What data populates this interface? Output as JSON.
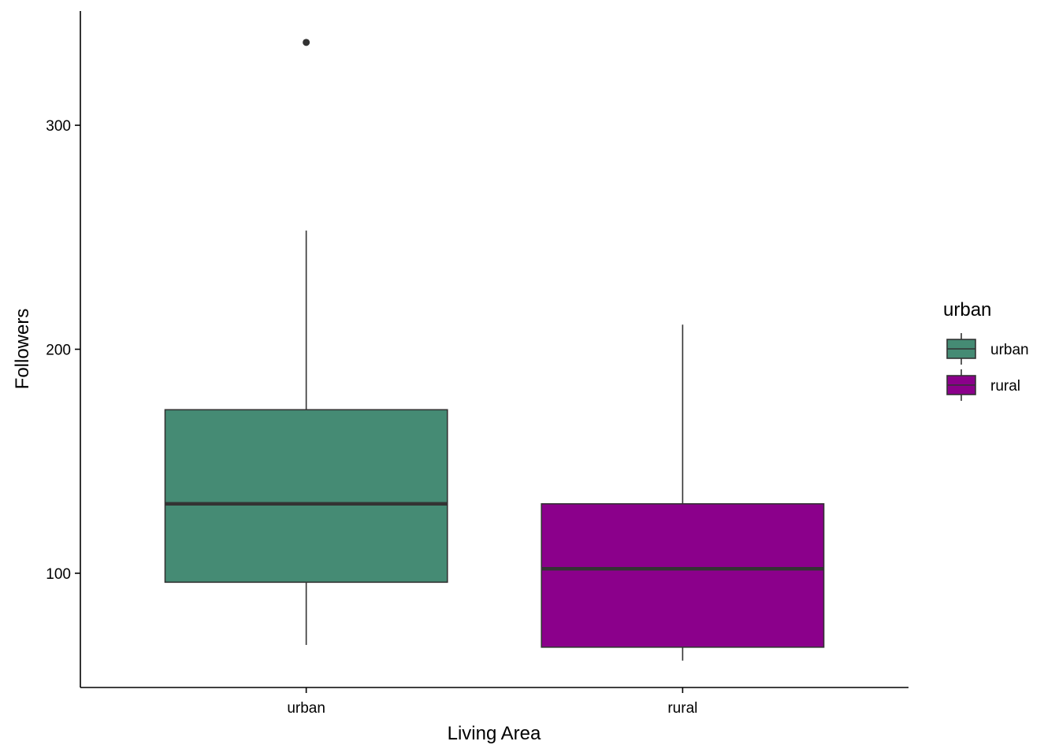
{
  "chart_data": {
    "type": "boxplot",
    "title": "",
    "xlabel": "Living Area",
    "ylabel": "Followers",
    "ylim": [
      49,
      351
    ],
    "yticks": [
      100,
      200,
      300
    ],
    "categories": [
      "urban",
      "rural"
    ],
    "boxes": [
      {
        "category": "urban",
        "fill": "#458B74",
        "whisker_low": 68,
        "q1": 96,
        "median": 131,
        "q3": 173,
        "whisker_high": 253,
        "outliers": [
          337
        ]
      },
      {
        "category": "rural",
        "fill": "#8B008B",
        "whisker_low": 61,
        "q1": 67,
        "median": 102,
        "q3": 131,
        "whisker_high": 211,
        "outliers": []
      }
    ],
    "legend": {
      "title": "urban",
      "position": "right",
      "entries": [
        {
          "label": "urban",
          "fill": "#458B74"
        },
        {
          "label": "rural",
          "fill": "#8B008B"
        }
      ]
    },
    "grid": false
  }
}
